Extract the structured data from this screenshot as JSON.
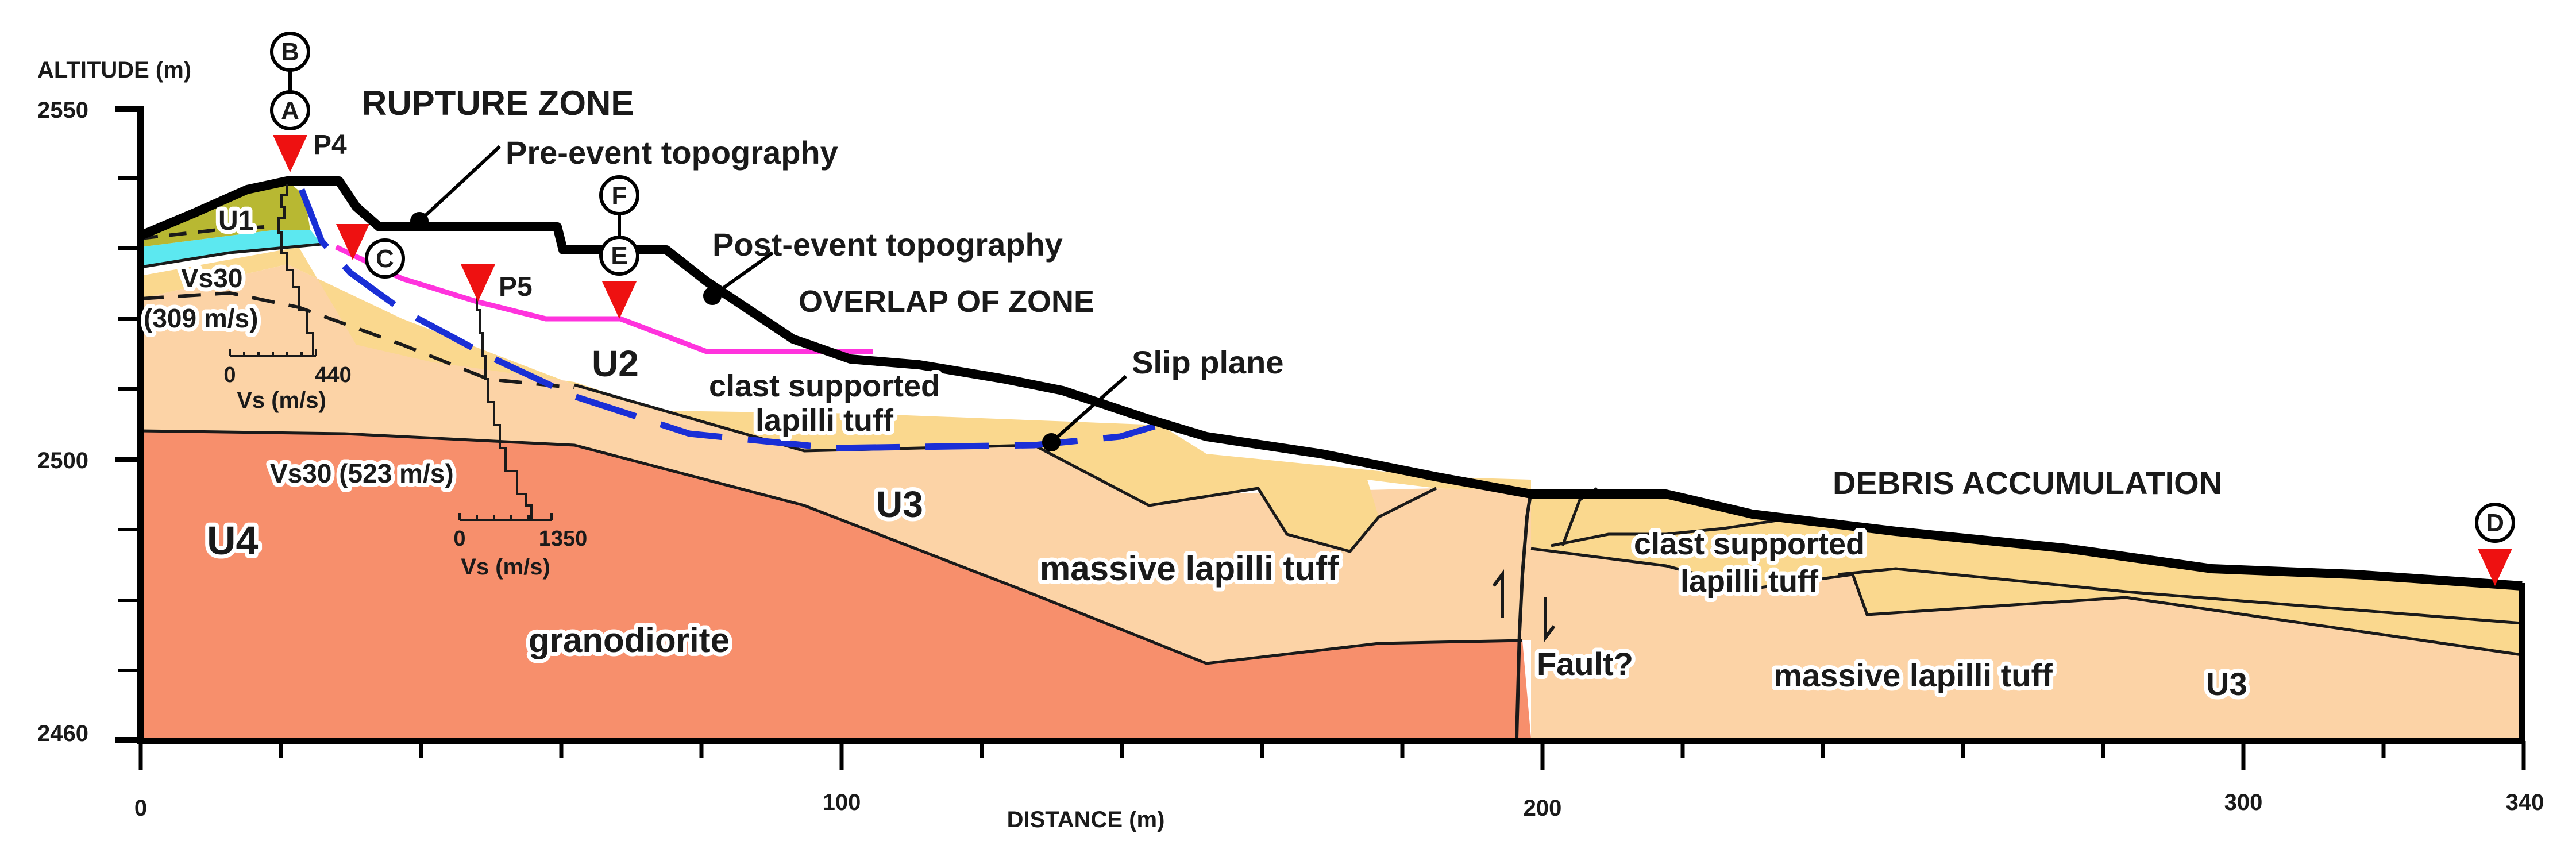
{
  "axes": {
    "y_title": "ALTITUDE (m)",
    "x_title": "DISTANCE (m)",
    "y_ticks": [
      "2550",
      "2500",
      "2460"
    ],
    "x_ticks": [
      "0",
      "100",
      "200",
      "300",
      "340"
    ]
  },
  "headings": {
    "rupture_zone": "RUPTURE ZONE",
    "overlap_zone": "OVERLAP OF ZONE",
    "debris_accumulation": "DEBRIS ACCUMULATION"
  },
  "callouts": {
    "pre_event": "Pre-event topography",
    "post_event": "Post-event topography",
    "slip_plane": "Slip plane"
  },
  "units": {
    "u1": "U1",
    "u2": "U2",
    "u3_upper": "U3",
    "u3_right": "U3",
    "u4": "U4"
  },
  "lithology": {
    "clast_upper_1": "clast supported",
    "clast_upper_2": "lapilli tuff",
    "massive_middle": "massive lapilli tuff",
    "granodiorite": "granodiorite",
    "clast_right_1": "clast supported",
    "clast_right_2": "lapilli tuff",
    "massive_right": "massive lapilli tuff",
    "fault": "Fault?"
  },
  "points": {
    "p4": "P4",
    "p5": "P5",
    "a": "A",
    "b": "B",
    "c": "C",
    "d": "D",
    "e": "E",
    "f": "F"
  },
  "profiles": {
    "p4_vs30_1": "Vs30",
    "p4_vs30_2": "(309 m/s)",
    "p4_scale_min": "0",
    "p4_scale_max": "440",
    "p4_scale_unit": "Vs (m/s)",
    "p5_vs30": "Vs30 (523 m/s)",
    "p5_scale_min": "0",
    "p5_scale_max": "1350",
    "p5_scale_unit": "Vs (m/s)"
  },
  "colors": {
    "u1": "#b8b832",
    "cyan_layer": "#5ce8f0",
    "u2": "#fad88e",
    "u3": "#fcd3a6",
    "u4": "#f78f6c",
    "post_event_line": "#ff33dd",
    "slip_plane_line": "#1a2fd6",
    "marker": "#ee1111"
  }
}
